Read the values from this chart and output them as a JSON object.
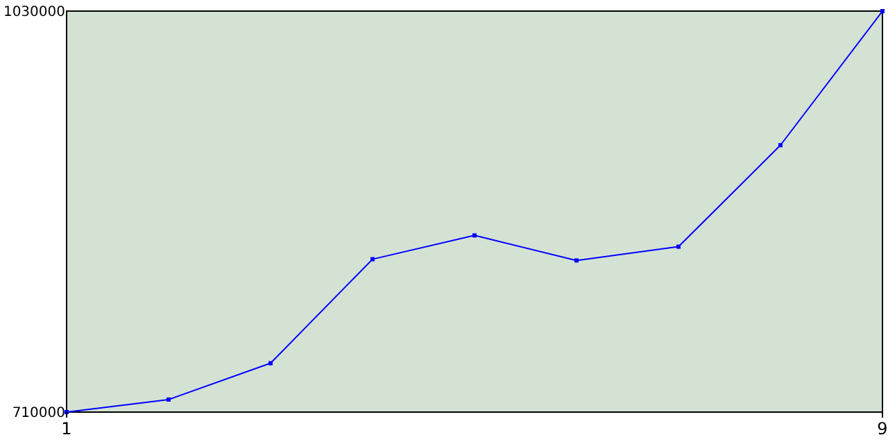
{
  "chart_data": {
    "type": "line",
    "x": [
      1,
      2,
      3,
      4,
      5,
      6,
      7,
      8,
      9
    ],
    "series": [
      {
        "color": "#0000ff",
        "values": [
          710000,
          720000,
          749000,
          832000,
          851000,
          831000,
          842000,
          923000,
          1030000
        ]
      }
    ],
    "xlim": [
      1,
      9
    ],
    "xticks": [
      1,
      9
    ],
    "ylim": [
      710000,
      1030000
    ],
    "yticks": [
      710000,
      1030000
    ],
    "marker": "square",
    "grid": false
  }
}
